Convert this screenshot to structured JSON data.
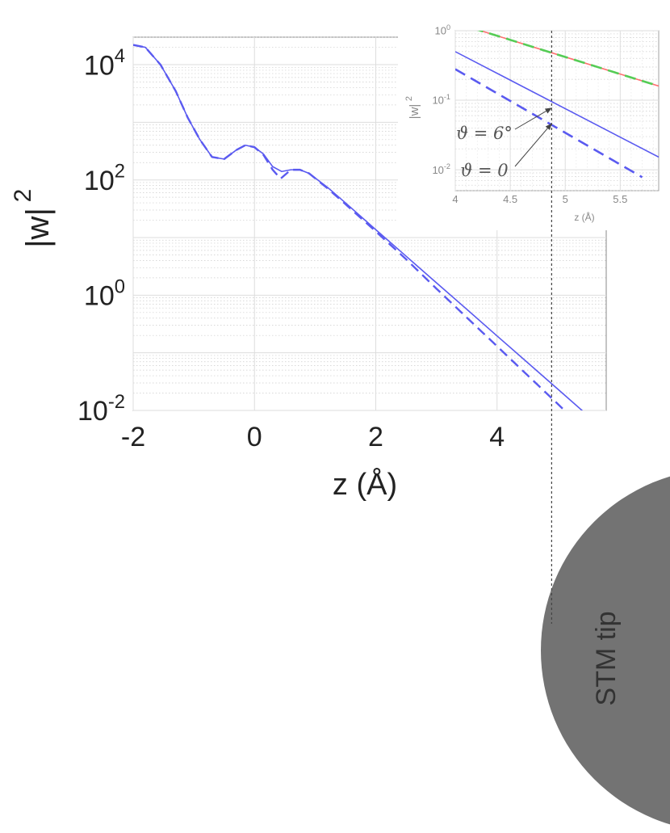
{
  "chart_data": [
    {
      "type": "line",
      "title": "",
      "xlabel": "z (Å)",
      "ylabel": "|w|",
      "ylabel_exponent": "2",
      "xlim": [
        -2,
        5.8
      ],
      "ylim": [
        0.01,
        30000
      ],
      "yscale": "log",
      "grid": true,
      "x_ticks": [
        {
          "v": -2,
          "label": "-2"
        },
        {
          "v": 0,
          "label": "0"
        },
        {
          "v": 2,
          "label": "2"
        },
        {
          "v": 4,
          "label": "4"
        }
      ],
      "y_ticks": [
        {
          "v": 0.01,
          "base": "10",
          "exp": "-2"
        },
        {
          "v": 1,
          "base": "10",
          "exp": "0"
        },
        {
          "v": 100,
          "base": "10",
          "exp": "2"
        },
        {
          "v": 10000,
          "base": "10",
          "exp": "4"
        }
      ],
      "series": [
        {
          "style": "solid",
          "color": "#5a5af0",
          "points": [
            [
              -2.0,
              22000
            ],
            [
              -1.8,
              20000
            ],
            [
              -1.55,
              10000
            ],
            [
              -1.3,
              3500
            ],
            [
              -1.1,
              1200
            ],
            [
              -0.9,
              500
            ],
            [
              -0.7,
              250
            ],
            [
              -0.5,
              230
            ],
            [
              -0.3,
              330
            ],
            [
              -0.15,
              400
            ],
            [
              0.0,
              370
            ],
            [
              0.15,
              280
            ],
            [
              0.3,
              170
            ],
            [
              0.45,
              140
            ],
            [
              0.6,
              150
            ],
            [
              0.75,
              150
            ],
            [
              0.9,
              130
            ],
            [
              1.2,
              75
            ],
            [
              1.5,
              40
            ],
            [
              2.0,
              13.7
            ],
            [
              2.5,
              4.75
            ],
            [
              3.0,
              1.64
            ],
            [
              3.5,
              0.57
            ],
            [
              4.0,
              0.196
            ],
            [
              4.5,
              0.068
            ],
            [
              5.0,
              0.0235
            ],
            [
              5.5,
              0.0081
            ],
            [
              5.8,
              0.0043
            ]
          ]
        },
        {
          "style": "dashed",
          "color": "#5a5af0",
          "points": [
            [
              -2.0,
              22000
            ],
            [
              -1.8,
              20000
            ],
            [
              -1.55,
              10000
            ],
            [
              -1.3,
              3500
            ],
            [
              -1.1,
              1200
            ],
            [
              -0.9,
              500
            ],
            [
              -0.7,
              250
            ],
            [
              -0.5,
              230
            ],
            [
              -0.3,
              330
            ],
            [
              -0.15,
              400
            ],
            [
              0.0,
              370
            ],
            [
              0.15,
              270
            ],
            [
              0.3,
              150
            ],
            [
              0.43,
              105
            ],
            [
              0.6,
              150
            ],
            [
              0.75,
              150
            ],
            [
              0.9,
              130
            ],
            [
              1.2,
              72
            ],
            [
              1.5,
              38
            ],
            [
              2.0,
              12.8
            ],
            [
              2.5,
              4.2
            ],
            [
              3.0,
              1.3
            ],
            [
              3.5,
              0.41
            ],
            [
              4.0,
              0.13
            ],
            [
              4.5,
              0.041
            ],
            [
              5.0,
              0.013
            ],
            [
              5.3,
              0.0064
            ]
          ]
        }
      ],
      "marker_line_x": 4.9
    },
    {
      "type": "line",
      "title": "",
      "xlabel": "z (Å)",
      "ylabel": "|w|",
      "ylabel_exponent": "2",
      "xlim": [
        4,
        5.85
      ],
      "ylim": [
        0.005,
        1
      ],
      "yscale": "log",
      "grid": true,
      "x_ticks": [
        {
          "v": 4,
          "label": "4"
        },
        {
          "v": 4.5,
          "label": "4.5"
        },
        {
          "v": 5,
          "label": "5"
        },
        {
          "v": 5.5,
          "label": "5.5"
        }
      ],
      "y_ticks": [
        {
          "v": 1,
          "base": "10",
          "exp": "0"
        },
        {
          "v": 0.1,
          "base": "10",
          "exp": "-1"
        },
        {
          "v": 0.01,
          "base": "10",
          "exp": "-2"
        }
      ],
      "series": [
        {
          "style": "solid",
          "color": "#ff7070",
          "points": [
            [
              4.0,
              1.3
            ],
            [
              5.85,
              0.16
            ]
          ]
        },
        {
          "style": "dashed",
          "color": "#55cc55",
          "points": [
            [
              4.0,
              1.3
            ],
            [
              5.85,
              0.16
            ]
          ]
        },
        {
          "style": "solid",
          "color": "#5a5af0",
          "points": [
            [
              4.0,
              0.5
            ],
            [
              5.85,
              0.0152
            ]
          ]
        },
        {
          "style": "dashed",
          "color": "#5a5af0",
          "points": [
            [
              4.0,
              0.28
            ],
            [
              5.7,
              0.0078
            ]
          ]
        }
      ],
      "annotations": [
        {
          "text": "ϑ = 6°",
          "x": 4.9,
          "y": 0.082
        },
        {
          "text": "ϑ = 0",
          "x": 4.9,
          "y": 0.049
        }
      ],
      "marker_line_x": 4.9
    }
  ],
  "tip": {
    "label": "STM tip",
    "color": "#737373"
  }
}
